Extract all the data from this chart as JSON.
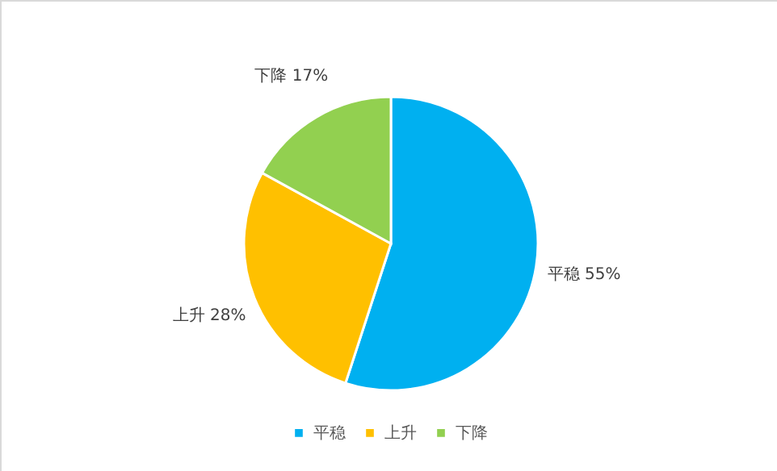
{
  "chart_data": {
    "type": "pie",
    "categories": [
      "平稳",
      "上升",
      "下降"
    ],
    "values": [
      55,
      28,
      17
    ],
    "colors": [
      "#00b0f0",
      "#ffc000",
      "#92d050"
    ],
    "value_labels": [
      "平稳 55%",
      "上升 28%",
      "下降 17%"
    ],
    "legend": "bottom"
  }
}
